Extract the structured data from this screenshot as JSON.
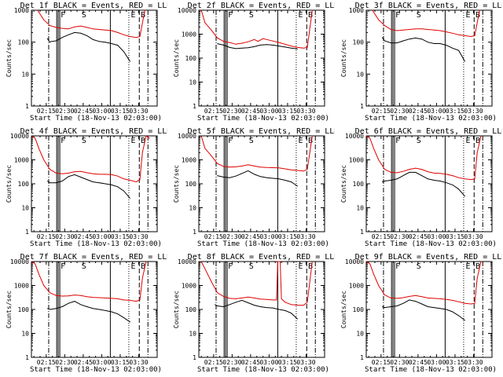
{
  "figure": {
    "x_title": "Start Time (18-Nov-13 02:03:00)",
    "y_title": "Counts/sec",
    "xticks": [
      "02:15",
      "02:30",
      "02:45",
      "03:00",
      "03:15",
      "03:30"
    ],
    "yticks": [
      "1",
      "10",
      "100",
      "1000",
      "10000"
    ],
    "markers": {
      "S": "S",
      "F": "F",
      "E": "E",
      "B": "B"
    }
  },
  "colors": {
    "events": "#000000",
    "lld": "#e00000",
    "axes": "#000000"
  },
  "chart_data": [
    {
      "type": "line",
      "title": "Det 1f BLACK = Events, RED = LLD",
      "ylim": [
        1,
        1000
      ],
      "x_range_min": [
        0,
        102
      ],
      "series": [
        {
          "name": "Events",
          "x": [
            13,
            14,
            15,
            16,
            20,
            25,
            30,
            35,
            40,
            45,
            50,
            55,
            60,
            65,
            70,
            75,
            80
          ],
          "values": [
            130,
            110,
            100,
            105,
            110,
            140,
            170,
            200,
            190,
            160,
            120,
            105,
            100,
            90,
            80,
            50,
            25
          ]
        },
        {
          "name": "LLD",
          "x": [
            5,
            10,
            15,
            20,
            25,
            30,
            35,
            40,
            45,
            50,
            55,
            60,
            65,
            70,
            75,
            80,
            85,
            88,
            92
          ],
          "values": [
            1000,
            500,
            330,
            290,
            270,
            260,
            300,
            320,
            290,
            260,
            250,
            240,
            230,
            200,
            170,
            150,
            140,
            150,
            1000
          ]
        }
      ]
    },
    {
      "type": "line",
      "title": "Det 2f BLACK = Events, RED = LLD",
      "ylim": [
        1,
        10000
      ],
      "x_range_min": [
        0,
        102
      ],
      "series": [
        {
          "name": "Events",
          "x": [
            15,
            20,
            25,
            30,
            35,
            40,
            45,
            50,
            55,
            60,
            65,
            70,
            75,
            80
          ],
          "values": [
            400,
            350,
            280,
            250,
            260,
            270,
            300,
            350,
            370,
            350,
            320,
            290,
            260,
            240
          ]
        },
        {
          "name": "LLD",
          "x": [
            2,
            5,
            10,
            15,
            20,
            25,
            30,
            35,
            40,
            45,
            48,
            52,
            55,
            60,
            65,
            70,
            75,
            80,
            85,
            88,
            92
          ],
          "values": [
            10000,
            3000,
            1500,
            700,
            500,
            450,
            380,
            420,
            480,
            600,
            500,
            650,
            600,
            520,
            450,
            380,
            320,
            280,
            260,
            280,
            10000
          ]
        }
      ]
    },
    {
      "type": "line",
      "title": "Det 3f BLACK = Events, RED = LLD",
      "ylim": [
        1,
        1000
      ],
      "x_range_min": [
        0,
        102
      ],
      "series": [
        {
          "name": "Events",
          "x": [
            13,
            15,
            20,
            25,
            30,
            35,
            40,
            45,
            50,
            55,
            60,
            65,
            70,
            75,
            80
          ],
          "values": [
            140,
            110,
            95,
            95,
            110,
            125,
            135,
            125,
            100,
            90,
            90,
            80,
            65,
            55,
            25
          ]
        },
        {
          "name": "LLD",
          "x": [
            5,
            10,
            15,
            20,
            25,
            30,
            35,
            40,
            45,
            50,
            55,
            60,
            65,
            70,
            75,
            80,
            85,
            88,
            92
          ],
          "values": [
            1000,
            500,
            330,
            250,
            230,
            240,
            250,
            260,
            260,
            250,
            240,
            230,
            210,
            190,
            170,
            160,
            150,
            160,
            1000
          ]
        }
      ]
    },
    {
      "type": "line",
      "title": "Det 4f BLACK = Events, RED = LLD",
      "ylim": [
        1,
        10000
      ],
      "x_range_min": [
        0,
        102
      ],
      "series": [
        {
          "name": "Events",
          "x": [
            13,
            15,
            20,
            25,
            30,
            35,
            40,
            45,
            50,
            55,
            60,
            65,
            70,
            75,
            80
          ],
          "values": [
            130,
            110,
            110,
            130,
            200,
            240,
            190,
            150,
            120,
            110,
            100,
            90,
            75,
            50,
            25
          ]
        },
        {
          "name": "LLD",
          "x": [
            0,
            3,
            6,
            10,
            15,
            20,
            25,
            30,
            35,
            40,
            45,
            50,
            55,
            60,
            65,
            70,
            75,
            80,
            85,
            88,
            90,
            93,
            96
          ],
          "values": [
            10000,
            8000,
            3000,
            1000,
            400,
            280,
            260,
            280,
            320,
            330,
            290,
            260,
            250,
            250,
            240,
            210,
            160,
            140,
            120,
            150,
            2000,
            10000,
            8000
          ]
        }
      ]
    },
    {
      "type": "line",
      "title": "Det 5f BLACK = Events, RED = LLD",
      "ylim": [
        1,
        10000
      ],
      "x_range_min": [
        0,
        102
      ],
      "series": [
        {
          "name": "Events",
          "x": [
            15,
            20,
            25,
            30,
            35,
            40,
            45,
            50,
            55,
            60,
            65,
            70,
            75,
            80
          ],
          "values": [
            220,
            190,
            180,
            210,
            270,
            350,
            250,
            200,
            180,
            170,
            160,
            140,
            120,
            80
          ]
        },
        {
          "name": "LLD",
          "x": [
            2,
            5,
            10,
            15,
            20,
            25,
            30,
            35,
            40,
            45,
            50,
            55,
            60,
            65,
            70,
            75,
            80,
            85,
            88,
            92
          ],
          "values": [
            10000,
            3000,
            1500,
            700,
            530,
            500,
            510,
            550,
            620,
            550,
            500,
            480,
            470,
            460,
            420,
            380,
            360,
            340,
            400,
            10000
          ]
        }
      ]
    },
    {
      "type": "line",
      "title": "Det 6f BLACK = Events, RED = LLD",
      "ylim": [
        1,
        10000
      ],
      "x_range_min": [
        0,
        102
      ],
      "series": [
        {
          "name": "Events",
          "x": [
            13,
            15,
            20,
            25,
            30,
            35,
            40,
            45,
            50,
            55,
            60,
            65,
            70,
            75,
            80
          ],
          "values": [
            120,
            130,
            140,
            160,
            220,
            300,
            300,
            220,
            160,
            140,
            130,
            110,
            90,
            60,
            30
          ]
        },
        {
          "name": "LLD",
          "x": [
            0,
            3,
            6,
            10,
            15,
            20,
            25,
            30,
            35,
            40,
            45,
            50,
            55,
            60,
            65,
            70,
            75,
            80,
            85,
            88,
            90,
            93
          ],
          "values": [
            10000,
            8000,
            3000,
            1000,
            400,
            300,
            290,
            330,
            400,
            450,
            400,
            320,
            280,
            270,
            250,
            220,
            180,
            160,
            150,
            160,
            2000,
            10000
          ]
        }
      ]
    },
    {
      "type": "line",
      "title": "Det 7f BLACK = Events, RED = LLD",
      "ylim": [
        1,
        10000
      ],
      "x_range_min": [
        0,
        102
      ],
      "series": [
        {
          "name": "Events",
          "x": [
            13,
            15,
            20,
            25,
            30,
            35,
            40,
            45,
            50,
            55,
            60,
            65,
            70,
            75,
            80
          ],
          "values": [
            110,
            100,
            110,
            130,
            180,
            220,
            160,
            130,
            110,
            100,
            90,
            80,
            65,
            45,
            30
          ]
        },
        {
          "name": "LLD",
          "x": [
            0,
            3,
            6,
            10,
            15,
            20,
            25,
            30,
            35,
            40,
            45,
            50,
            55,
            60,
            65,
            70,
            75,
            80,
            85,
            88,
            90,
            93
          ],
          "values": [
            10000,
            8000,
            3000,
            1000,
            500,
            380,
            360,
            370,
            400,
            380,
            340,
            320,
            310,
            300,
            290,
            280,
            250,
            240,
            220,
            250,
            2000,
            10000
          ]
        }
      ]
    },
    {
      "type": "line",
      "title": "Det 8f BLACK = Events, RED = LLD",
      "ylim": [
        1,
        10000
      ],
      "x_range_min": [
        0,
        102
      ],
      "series": [
        {
          "name": "Events",
          "x": [
            13,
            15,
            20,
            25,
            30,
            35,
            40,
            45,
            50,
            55,
            60,
            65,
            70,
            75,
            80
          ],
          "values": [
            160,
            140,
            130,
            160,
            200,
            240,
            190,
            150,
            130,
            120,
            115,
            100,
            90,
            70,
            40
          ]
        },
        {
          "name": "LLD",
          "x": [
            2,
            5,
            10,
            15,
            20,
            25,
            30,
            35,
            40,
            45,
            50,
            55,
            60,
            63,
            64,
            66,
            67,
            70,
            75,
            80,
            85,
            88,
            92
          ],
          "values": [
            10000,
            5000,
            1500,
            500,
            350,
            290,
            280,
            300,
            330,
            300,
            270,
            260,
            250,
            250,
            10000,
            10000,
            280,
            200,
            160,
            150,
            150,
            200,
            10000
          ]
        }
      ]
    },
    {
      "type": "line",
      "title": "Det 9f BLACK = Events, RED = LLD",
      "ylim": [
        1,
        10000
      ],
      "x_range_min": [
        0,
        102
      ],
      "series": [
        {
          "name": "Events",
          "x": [
            13,
            15,
            20,
            25,
            30,
            35,
            40,
            45,
            50,
            55,
            60,
            65,
            70,
            75,
            80
          ],
          "values": [
            130,
            120,
            130,
            140,
            180,
            250,
            220,
            170,
            130,
            120,
            110,
            100,
            80,
            55,
            35
          ]
        },
        {
          "name": "LLD",
          "x": [
            0,
            3,
            6,
            10,
            15,
            20,
            25,
            30,
            35,
            40,
            45,
            50,
            55,
            60,
            65,
            70,
            75,
            80,
            85,
            88,
            90,
            93
          ],
          "values": [
            10000,
            8000,
            3000,
            1000,
            400,
            300,
            290,
            310,
            350,
            380,
            340,
            300,
            290,
            280,
            260,
            240,
            210,
            180,
            170,
            180,
            2000,
            10000
          ]
        }
      ]
    }
  ]
}
